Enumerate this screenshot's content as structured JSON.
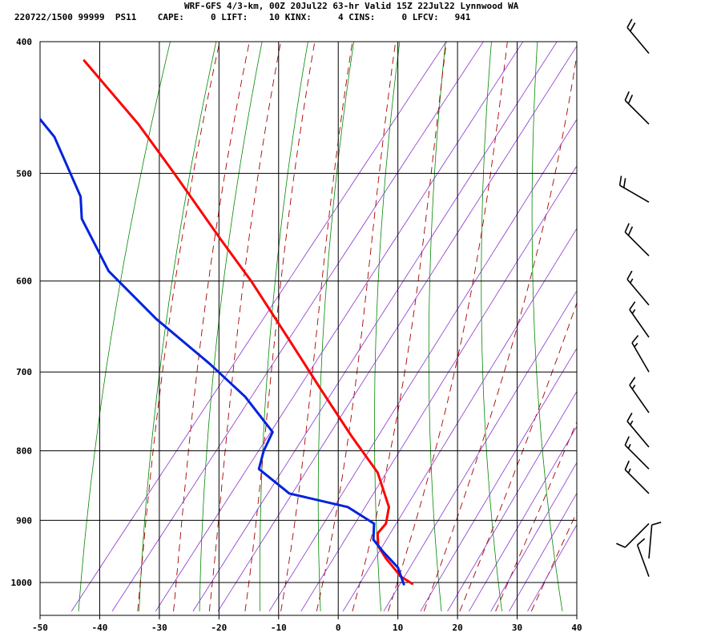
{
  "header": {
    "line1": "WRF-GFS 4/3-km, 00Z 20Jul22 63-hr Valid 15Z 22Jul22 Lynnwood WA",
    "line2": "220722/1500 99999  PS11    CAPE:     0 LIFT:    10 KINX:     4 CINS:     0 LFCV:   941"
  },
  "chart_data": {
    "type": "line",
    "title": "WRF-GFS 4/3-km, 00Z 20Jul22 63-hr Valid 15Z 22Jul22 Lynnwood WA",
    "xlabel": "",
    "ylabel": "",
    "x_unit_note": "skewed temperature axis (deg C at surface)",
    "xlim": [
      -50,
      40
    ],
    "ylim": [
      1040,
      400
    ],
    "y_scale": "log-pressure",
    "grid": true,
    "x_ticks": [
      -50,
      -40,
      -30,
      -20,
      -10,
      0,
      10,
      20,
      30,
      40
    ],
    "y_ticks": [
      400,
      500,
      600,
      700,
      800,
      900,
      1000
    ],
    "colors": {
      "temperature": "#ff0000",
      "dewpoint": "#0022dd",
      "dry_adiabat": "#008800",
      "moist_adiabat": "#aa0000",
      "mixing_ratio": "#8833cc",
      "grid": "#000000"
    },
    "series": [
      {
        "name": "temperature",
        "points": [
          {
            "p": 1002,
            "t": 12.4
          },
          {
            "p": 990,
            "t": 10.5
          },
          {
            "p": 960,
            "t": 8.0
          },
          {
            "p": 940,
            "t": 6.7
          },
          {
            "p": 920,
            "t": 6.6
          },
          {
            "p": 905,
            "t": 8.0
          },
          {
            "p": 880,
            "t": 8.5
          },
          {
            "p": 830,
            "t": 6.6
          },
          {
            "p": 780,
            "t": 2.2
          },
          {
            "p": 720,
            "t": -3.0
          },
          {
            "p": 660,
            "t": -8.5
          },
          {
            "p": 600,
            "t": -14.6
          },
          {
            "p": 560,
            "t": -19.6
          },
          {
            "p": 500,
            "t": -27.5
          },
          {
            "p": 460,
            "t": -33.5
          },
          {
            "p": 413,
            "t": -42.6
          }
        ]
      },
      {
        "name": "dewpoint",
        "points": [
          {
            "p": 1003,
            "t": 11.0
          },
          {
            "p": 975,
            "t": 10.0
          },
          {
            "p": 950,
            "t": 7.6
          },
          {
            "p": 930,
            "t": 5.9
          },
          {
            "p": 905,
            "t": 6.0
          },
          {
            "p": 880,
            "t": 1.6
          },
          {
            "p": 860,
            "t": -8.2
          },
          {
            "p": 825,
            "t": -13.3
          },
          {
            "p": 800,
            "t": -12.5
          },
          {
            "p": 775,
            "t": -11.0
          },
          {
            "p": 730,
            "t": -15.6
          },
          {
            "p": 690,
            "t": -21.6
          },
          {
            "p": 640,
            "t": -30.5
          },
          {
            "p": 590,
            "t": -38.5
          },
          {
            "p": 540,
            "t": -43.0
          },
          {
            "p": 520,
            "t": -43.2
          },
          {
            "p": 470,
            "t": -47.6
          },
          {
            "p": 413,
            "t": -58.0
          }
        ]
      }
    ],
    "wind_barbs": [
      {
        "p": 408,
        "dir": 320,
        "speed": 20
      },
      {
        "p": 460,
        "dir": 315,
        "speed": 20
      },
      {
        "p": 525,
        "dir": 300,
        "speed": 20
      },
      {
        "p": 575,
        "dir": 315,
        "speed": 20
      },
      {
        "p": 625,
        "dir": 320,
        "speed": 15
      },
      {
        "p": 660,
        "dir": 325,
        "speed": 15
      },
      {
        "p": 700,
        "dir": 330,
        "speed": 15
      },
      {
        "p": 750,
        "dir": 325,
        "speed": 15
      },
      {
        "p": 795,
        "dir": 320,
        "speed": 15
      },
      {
        "p": 825,
        "dir": 315,
        "speed": 15
      },
      {
        "p": 860,
        "dir": 315,
        "speed": 15
      },
      {
        "p": 905,
        "dir": 225,
        "speed": 10
      },
      {
        "p": 960,
        "dir": 5,
        "speed": 10
      },
      {
        "p": 990,
        "dir": 340,
        "speed": 10
      }
    ]
  }
}
